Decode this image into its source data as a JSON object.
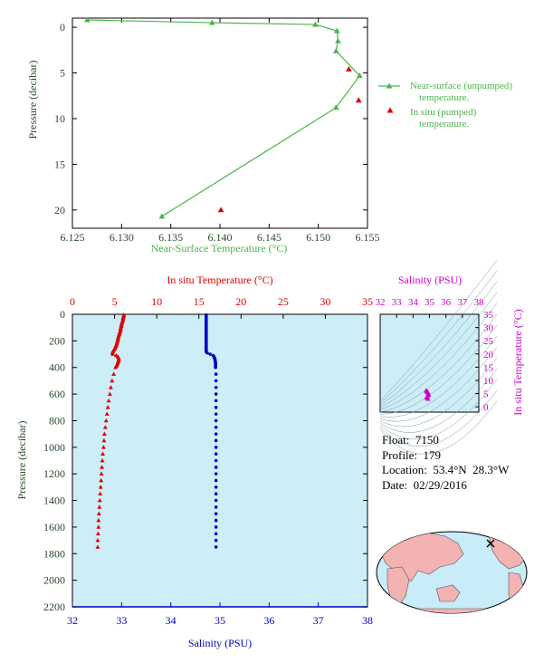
{
  "colors": {
    "green": "#4cb54c",
    "red": "#dd0000",
    "blue": "#0000bb",
    "magenta": "#cc00cc",
    "axis_dark": "#2a4a2a",
    "panel_bg": "#cdeef6",
    "land": "#f3b3b3",
    "ocean": "#c8ecf8"
  },
  "float_info": {
    "float_label": "Float:",
    "float_value": "7150",
    "profile_label": "Profile:",
    "profile_value": "179",
    "location_label": "Location:",
    "location_value": "53.4°N  28.3°W",
    "date_label": "Date:",
    "date_value": "02/29/2016"
  },
  "stamp_text": "",
  "chart_data": [
    {
      "id": "near_surface",
      "type": "line",
      "xlabel": "Near-Surface Temperature (°C)",
      "ylabel": "Pressure (decibar)",
      "xlim": [
        6.125,
        6.155
      ],
      "ylim": [
        22,
        -1
      ],
      "xticks": [
        6.125,
        6.13,
        6.135,
        6.14,
        6.145,
        6.15,
        6.155
      ],
      "yticks": [
        0,
        5,
        10,
        15,
        20
      ],
      "series": [
        {
          "name": "Near-surface (unpumped) temperature.",
          "marker": "triangle",
          "x": [
            6.1265,
            6.1392,
            6.1497,
            6.1519,
            6.152,
            6.1518,
            6.1542,
            6.1518,
            6.1341
          ],
          "y": [
            -0.8,
            -0.5,
            -0.3,
            0.4,
            1.5,
            2.6,
            5.3,
            8.8,
            20.7
          ]
        },
        {
          "name": "In situ (pumped) temperature.",
          "marker": "triangle",
          "x": [
            6.1531,
            6.1541,
            6.1401
          ],
          "y": [
            4.6,
            8.0,
            20.0
          ]
        }
      ],
      "legend": "right"
    },
    {
      "id": "profile",
      "type": "scatter",
      "title": "In situ Temperature (°C)",
      "xlabel": "Salinity (PSU)",
      "ylabel": "Pressure (decibar)",
      "temp_lim": [
        0,
        35
      ],
      "sal_lim": [
        32,
        38
      ],
      "ylim": [
        2200,
        0
      ],
      "temp_ticks": [
        0,
        5,
        10,
        15,
        20,
        25,
        30,
        35
      ],
      "sal_ticks": [
        32,
        33,
        34,
        35,
        36,
        37,
        38
      ],
      "yticks": [
        0,
        200,
        400,
        600,
        800,
        1000,
        1200,
        1400,
        1600,
        1800,
        2000,
        2200
      ],
      "series": [
        {
          "name": "In situ Temperature",
          "marker": "triangle",
          "pressure": [
            5,
            10,
            20,
            30,
            40,
            50,
            60,
            70,
            80,
            90,
            100,
            110,
            120,
            130,
            140,
            150,
            160,
            170,
            180,
            190,
            200,
            210,
            220,
            230,
            240,
            250,
            260,
            270,
            280,
            290,
            300,
            310,
            320,
            330,
            340,
            350,
            360,
            370,
            380,
            390,
            400,
            450,
            500,
            550,
            600,
            650,
            700,
            750,
            800,
            850,
            900,
            950,
            1000,
            1050,
            1100,
            1150,
            1200,
            1250,
            1300,
            1350,
            1400,
            1450,
            1500,
            1550,
            1600,
            1650,
            1700,
            1750
          ],
          "temp": [
            6.1,
            6.1,
            6.05,
            6.0,
            6.0,
            5.95,
            5.9,
            5.85,
            5.8,
            5.8,
            5.75,
            5.7,
            5.7,
            5.65,
            5.6,
            5.55,
            5.5,
            5.45,
            5.4,
            5.4,
            5.35,
            5.3,
            5.25,
            5.2,
            5.15,
            5.1,
            5.0,
            4.9,
            4.8,
            4.75,
            4.8,
            5.2,
            5.4,
            5.5,
            5.5,
            5.45,
            5.4,
            5.35,
            5.3,
            5.2,
            5.1,
            4.9,
            4.7,
            4.55,
            4.45,
            4.3,
            4.2,
            4.1,
            4.0,
            3.9,
            3.8,
            3.75,
            3.7,
            3.6,
            3.55,
            3.5,
            3.45,
            3.4,
            3.35,
            3.3,
            3.25,
            3.2,
            3.15,
            3.1,
            3.1,
            3.05,
            3.0,
            3.0
          ]
        },
        {
          "name": "Salinity",
          "marker": "dot",
          "pressure": [
            5,
            10,
            20,
            30,
            40,
            50,
            60,
            70,
            80,
            90,
            100,
            110,
            120,
            130,
            140,
            150,
            160,
            170,
            180,
            190,
            200,
            210,
            220,
            230,
            240,
            250,
            260,
            270,
            280,
            290,
            300,
            310,
            320,
            330,
            340,
            350,
            360,
            370,
            380,
            390,
            400,
            450,
            500,
            550,
            600,
            650,
            700,
            750,
            800,
            850,
            900,
            950,
            1000,
            1050,
            1100,
            1150,
            1200,
            1250,
            1300,
            1350,
            1400,
            1450,
            1500,
            1550,
            1600,
            1650,
            1700,
            1750
          ],
          "sal": [
            34.72,
            34.72,
            34.72,
            34.72,
            34.72,
            34.72,
            34.72,
            34.72,
            34.72,
            34.72,
            34.72,
            34.72,
            34.72,
            34.72,
            34.72,
            34.72,
            34.72,
            34.72,
            34.72,
            34.72,
            34.72,
            34.72,
            34.72,
            34.72,
            34.72,
            34.72,
            34.72,
            34.72,
            34.72,
            34.74,
            34.8,
            34.86,
            34.88,
            34.89,
            34.9,
            34.9,
            34.91,
            34.91,
            34.91,
            34.91,
            34.91,
            34.92,
            34.92,
            34.92,
            34.92,
            34.92,
            34.92,
            34.92,
            34.92,
            34.92,
            34.92,
            34.92,
            34.92,
            34.92,
            34.92,
            34.92,
            34.92,
            34.92,
            34.92,
            34.92,
            34.92,
            34.92,
            34.92,
            34.92,
            34.92,
            34.92,
            34.92,
            34.92
          ]
        }
      ]
    },
    {
      "id": "ts_diagram",
      "type": "scatter",
      "title": "Salinity (PSU)",
      "ylabel": "In situ Temperature (°C)",
      "xlim": [
        32,
        38
      ],
      "ylim": [
        -2,
        35
      ],
      "xticks": [
        32,
        33,
        34,
        35,
        36,
        37,
        38
      ],
      "yticks": [
        0,
        5,
        10,
        15,
        20,
        25,
        30,
        35
      ],
      "series": [
        {
          "name": "T-S",
          "marker": "triangle",
          "x": [
            34.8,
            34.85,
            34.9,
            34.92,
            34.95,
            34.88,
            34.82,
            34.9
          ],
          "y": [
            6.1,
            5.8,
            5.5,
            5.0,
            4.5,
            4.0,
            3.5,
            3.0
          ]
        }
      ]
    }
  ]
}
